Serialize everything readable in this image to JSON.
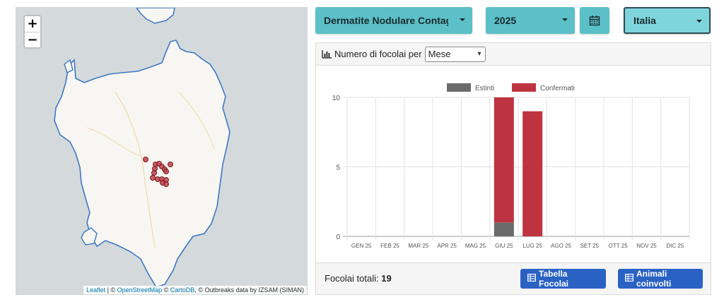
{
  "map": {
    "zoom_in_label": "+",
    "zoom_out_label": "−",
    "attribution": {
      "leaflet": "Leaflet",
      "sep1": " | © ",
      "osm": "OpenStreetMap",
      "sep2": " © ",
      "carto": "CartoDB",
      "rest": ", © Outbreaks data by IZSAM (SIMAN)"
    },
    "colors": {
      "sea": "#d4dadc",
      "land": "#f7f6f2",
      "coast": "#3d77c4",
      "outbreak": "#c0404a"
    }
  },
  "filters": {
    "disease": "Dermatite Nodulare Contagiosa",
    "year": "2025",
    "calendar_icon": "calendar-icon",
    "country": "Italia"
  },
  "panel": {
    "header_label": "Numero di focolai per",
    "period_select": "Mese",
    "total_label": "Focolai totali:",
    "total_value": "19",
    "btn_table": "Tabella Focolai",
    "btn_animals": "Animali coinvolti"
  },
  "chart_data": {
    "type": "bar",
    "stacked": true,
    "categories": [
      "GEN 25",
      "FEB 25",
      "MAR 25",
      "APR 25",
      "MAG 25",
      "GIU 25",
      "LUG 25",
      "AGO 25",
      "SET 25",
      "OTT 25",
      "NOV 25",
      "DIC 25"
    ],
    "series": [
      {
        "name": "Estinti",
        "color": "#6b6b6b",
        "values": [
          0,
          0,
          0,
          0,
          0,
          1,
          0,
          0,
          0,
          0,
          0,
          0
        ]
      },
      {
        "name": "Confermati",
        "color": "#bd3440",
        "values": [
          0,
          0,
          0,
          0,
          0,
          9,
          9,
          0,
          0,
          0,
          0,
          0
        ]
      }
    ],
    "ylim": [
      0,
      10
    ],
    "yticks": [
      0,
      5,
      10
    ],
    "legend": "top",
    "grid": true
  }
}
